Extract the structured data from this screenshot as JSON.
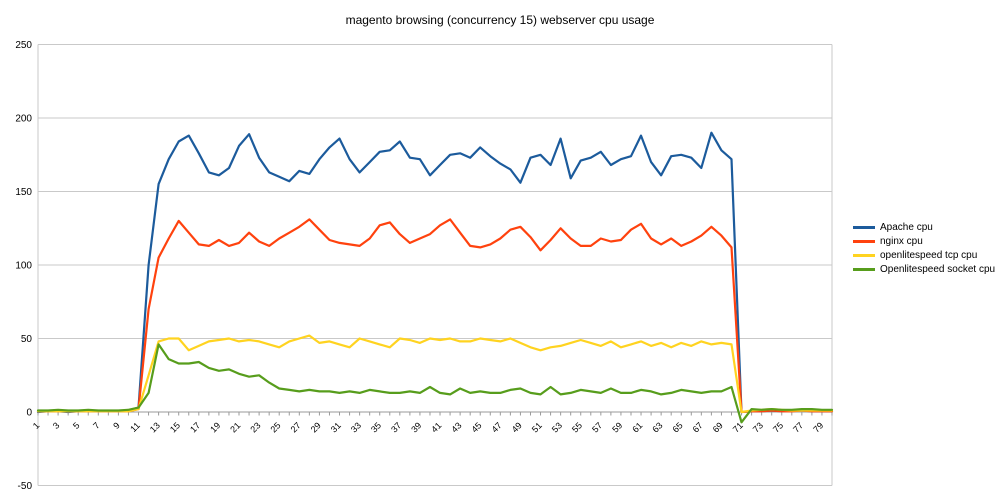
{
  "chart_data": {
    "type": "line",
    "title": "magento browsing (concurrency 15) webserver cpu usage",
    "xlabel": "",
    "ylabel": "",
    "ylim": [
      -50,
      250
    ],
    "yticks": [
      -50,
      0,
      50,
      100,
      150,
      200,
      250
    ],
    "grid": true,
    "legend_position": "right",
    "grid_color": "#c9c9c9",
    "axis_color": "#9a9a9a",
    "points_per_label": 2,
    "x_tick_labels": [
      "1",
      "3",
      "5",
      "7",
      "9",
      "11",
      "13",
      "15",
      "17",
      "19",
      "21",
      "23",
      "25",
      "27",
      "29",
      "31",
      "33",
      "35",
      "37",
      "39",
      "41",
      "43",
      "45",
      "47",
      "49",
      "51",
      "53",
      "55",
      "57",
      "59",
      "61",
      "63",
      "65",
      "67",
      "69",
      "71",
      "73",
      "75",
      "77",
      "79"
    ],
    "series": [
      {
        "name": "Apache cpu",
        "color": "#1c5b9c",
        "values": [
          0,
          0.5,
          0.5,
          0,
          0.5,
          0.5,
          0.5,
          0.5,
          0.5,
          1,
          3,
          100,
          155,
          172,
          184,
          188,
          176,
          163,
          161,
          166,
          181,
          189,
          173,
          163,
          160,
          157,
          164,
          162,
          172,
          180,
          186,
          172,
          163,
          170,
          177,
          178,
          184,
          173,
          172,
          161,
          168,
          175,
          176,
          173,
          180,
          174,
          169,
          165,
          156,
          173,
          175,
          168,
          186,
          159,
          171,
          173,
          177,
          168,
          172,
          174,
          188,
          170,
          161,
          174,
          175,
          173,
          166,
          190,
          178,
          172,
          0,
          0.5,
          0.5,
          1,
          0.5,
          1,
          1,
          0.5,
          0.5,
          0.5
        ]
      },
      {
        "name": "nginx cpu",
        "color": "#ff420e",
        "values": [
          0.5,
          0.5,
          0.5,
          0.5,
          0.5,
          0.5,
          0.5,
          0.5,
          0.5,
          0.5,
          2,
          70,
          105,
          118,
          130,
          122,
          114,
          113,
          117,
          113,
          115,
          122,
          116,
          113,
          118,
          122,
          126,
          131,
          124,
          117,
          115,
          114,
          113,
          118,
          127,
          129,
          121,
          115,
          118,
          121,
          127,
          131,
          122,
          113,
          112,
          114,
          118,
          124,
          126,
          119,
          110,
          117,
          125,
          118,
          113,
          113,
          118,
          116,
          117,
          124,
          128,
          118,
          114,
          118,
          113,
          116,
          120,
          126,
          120,
          112,
          0,
          0.5,
          0.5,
          1,
          0.5,
          0.5,
          1,
          0.5,
          0.5,
          0.5
        ]
      },
      {
        "name": "openlitespeed tcp cpu",
        "color": "#ffd320",
        "values": [
          0.5,
          0.5,
          0.5,
          0.5,
          0.5,
          0.5,
          0.5,
          0.5,
          0.5,
          0.5,
          2,
          25,
          48,
          50,
          50,
          42,
          45,
          48,
          49,
          50,
          48,
          49,
          48,
          46,
          44,
          48,
          50,
          52,
          47,
          48,
          46,
          44,
          50,
          48,
          46,
          44,
          50,
          49,
          47,
          50,
          49,
          50,
          48,
          48,
          50,
          49,
          48,
          50,
          47,
          44,
          42,
          44,
          45,
          47,
          49,
          47,
          45,
          48,
          44,
          46,
          48,
          45,
          47,
          44,
          47,
          45,
          48,
          46,
          47,
          46,
          0,
          1,
          1.5,
          2,
          1.5,
          1,
          1,
          1,
          1,
          1
        ]
      },
      {
        "name": "Openlitespeed socket cpu",
        "color": "#579d1c",
        "values": [
          1,
          1,
          1.5,
          1,
          1,
          1.5,
          1,
          1,
          1,
          1.5,
          3,
          13,
          46,
          36,
          33,
          33,
          34,
          30,
          28,
          29,
          26,
          24,
          25,
          20,
          16,
          15,
          14,
          15,
          14,
          14,
          13,
          14,
          13,
          15,
          14,
          13,
          13,
          14,
          13,
          17,
          13,
          12,
          16,
          13,
          14,
          13,
          13,
          15,
          16,
          13,
          12,
          17,
          12,
          13,
          15,
          14,
          13,
          16,
          13,
          13,
          15,
          14,
          12,
          13,
          15,
          14,
          13,
          14,
          14,
          17,
          -7,
          2,
          1.5,
          2,
          1.5,
          1.5,
          2,
          2,
          1.5,
          1.5
        ]
      }
    ]
  }
}
